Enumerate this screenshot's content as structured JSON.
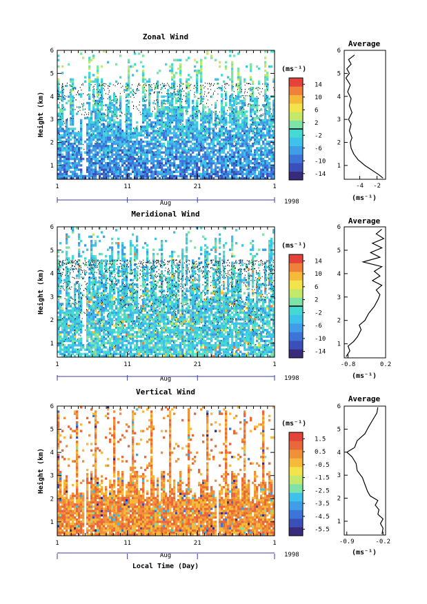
{
  "figure": {
    "xlabel": "Local Time (Day)",
    "year": "1998",
    "month": "Aug",
    "ylabel": "Height (km)"
  },
  "chart_data": [
    {
      "type": "heatmap",
      "title": "Zonal Wind",
      "xlabel": "Aug",
      "ylabel": "Height (km)",
      "x_ticks": [
        "1",
        "11",
        "21",
        "1"
      ],
      "y_ticks": [
        "1",
        "2",
        "3",
        "4",
        "5",
        "6"
      ],
      "ylim": [
        0.4,
        6
      ],
      "colorbar": {
        "unit": "(ms⁻¹)",
        "labels": [
          "14",
          "10",
          "6",
          "2",
          "-2",
          "-6",
          "-10",
          "-14"
        ],
        "range": [
          -16,
          16
        ],
        "zero_line": 0
      },
      "profile": {
        "title": "Average",
        "x_ticks": [
          "-4",
          "-2"
        ],
        "xlim": [
          -5.8,
          -1.0
        ],
        "unit": "(ms⁻¹)",
        "y_ticks": [
          "1",
          "2",
          "3",
          "4",
          "5",
          "6"
        ],
        "points": [
          {
            "v": -1.3,
            "h": 0.45
          },
          {
            "v": -1.8,
            "h": 0.6
          },
          {
            "v": -2.6,
            "h": 0.8
          },
          {
            "v": -3.4,
            "h": 1.0
          },
          {
            "v": -4.2,
            "h": 1.25
          },
          {
            "v": -4.7,
            "h": 1.5
          },
          {
            "v": -5.0,
            "h": 1.75
          },
          {
            "v": -5.1,
            "h": 2.0
          },
          {
            "v": -4.9,
            "h": 2.2
          },
          {
            "v": -5.2,
            "h": 2.5
          },
          {
            "v": -5.0,
            "h": 2.8
          },
          {
            "v": -5.3,
            "h": 3.0
          },
          {
            "v": -4.9,
            "h": 3.3
          },
          {
            "v": -5.2,
            "h": 3.6
          },
          {
            "v": -5.0,
            "h": 3.9
          },
          {
            "v": -5.4,
            "h": 4.2
          },
          {
            "v": -5.1,
            "h": 4.5
          },
          {
            "v": -5.6,
            "h": 4.8
          },
          {
            "v": -5.2,
            "h": 5.0
          },
          {
            "v": -5.5,
            "h": 5.2
          },
          {
            "v": -5.0,
            "h": 5.4
          },
          {
            "v": -5.3,
            "h": 5.6
          },
          {
            "v": -4.6,
            "h": 5.8
          }
        ]
      }
    },
    {
      "type": "heatmap",
      "title": "Meridional Wind",
      "xlabel": "Aug",
      "ylabel": "Height (km)",
      "x_ticks": [
        "1",
        "11",
        "21",
        "1"
      ],
      "y_ticks": [
        "1",
        "2",
        "3",
        "4",
        "5",
        "6"
      ],
      "ylim": [
        0.4,
        6
      ],
      "colorbar": {
        "unit": "(ms⁻¹)",
        "labels": [
          "14",
          "10",
          "6",
          "2",
          "-2",
          "-6",
          "-10",
          "-14"
        ],
        "range": [
          -16,
          16
        ],
        "zero_line": 0
      },
      "profile": {
        "title": "Average",
        "x_ticks": [
          "-0.8",
          "0.2"
        ],
        "xlim": [
          -0.9,
          0.2
        ],
        "unit": "(ms⁻¹)",
        "y_ticks": [
          "1",
          "2",
          "3",
          "4",
          "5",
          "6"
        ],
        "points": [
          {
            "v": -0.85,
            "h": 0.45
          },
          {
            "v": -0.75,
            "h": 0.7
          },
          {
            "v": -0.8,
            "h": 0.9
          },
          {
            "v": -0.65,
            "h": 1.1
          },
          {
            "v": -0.55,
            "h": 1.3
          },
          {
            "v": -0.45,
            "h": 1.6
          },
          {
            "v": -0.5,
            "h": 1.8
          },
          {
            "v": -0.35,
            "h": 2.0
          },
          {
            "v": -0.25,
            "h": 2.3
          },
          {
            "v": -0.1,
            "h": 2.6
          },
          {
            "v": 0.0,
            "h": 2.9
          },
          {
            "v": 0.05,
            "h": 3.1
          },
          {
            "v": -0.05,
            "h": 3.3
          },
          {
            "v": 0.1,
            "h": 3.5
          },
          {
            "v": -0.15,
            "h": 3.7
          },
          {
            "v": 0.05,
            "h": 3.9
          },
          {
            "v": -0.1,
            "h": 4.1
          },
          {
            "v": 0.1,
            "h": 4.3
          },
          {
            "v": -0.4,
            "h": 4.5
          },
          {
            "v": 0.05,
            "h": 4.7
          },
          {
            "v": -0.2,
            "h": 4.9
          },
          {
            "v": 0.1,
            "h": 5.1
          },
          {
            "v": -0.15,
            "h": 5.3
          },
          {
            "v": 0.15,
            "h": 5.5
          },
          {
            "v": -0.05,
            "h": 5.7
          },
          {
            "v": 0.1,
            "h": 5.9
          }
        ]
      }
    },
    {
      "type": "heatmap",
      "title": "Vertical Wind",
      "xlabel": "Aug",
      "ylabel": "Height (km)",
      "x_ticks": [
        "1",
        "11",
        "21",
        "1"
      ],
      "y_ticks": [
        "1",
        "2",
        "3",
        "4",
        "5",
        "6"
      ],
      "ylim": [
        0.4,
        6
      ],
      "colorbar": {
        "unit": "(ms⁻¹)",
        "labels": [
          "1.5",
          "0.5",
          "-0.5",
          "-1.5",
          "-2.5",
          "-3.5",
          "-4.5",
          "-5.5"
        ],
        "range": [
          -6.0,
          2.0
        ]
      },
      "profile": {
        "title": "Average",
        "x_ticks": [
          "-0.9",
          "-0.2"
        ],
        "xlim": [
          -0.95,
          -0.15
        ],
        "unit": "(ms⁻¹)",
        "y_ticks": [
          "1",
          "2",
          "3",
          "4",
          "5",
          "6"
        ],
        "points": [
          {
            "v": -0.22,
            "h": 0.45
          },
          {
            "v": -0.2,
            "h": 0.7
          },
          {
            "v": -0.25,
            "h": 0.9
          },
          {
            "v": -0.2,
            "h": 1.1
          },
          {
            "v": -0.3,
            "h": 1.3
          },
          {
            "v": -0.28,
            "h": 1.5
          },
          {
            "v": -0.35,
            "h": 1.7
          },
          {
            "v": -0.3,
            "h": 1.9
          },
          {
            "v": -0.45,
            "h": 2.1
          },
          {
            "v": -0.5,
            "h": 2.3
          },
          {
            "v": -0.55,
            "h": 2.6
          },
          {
            "v": -0.6,
            "h": 2.9
          },
          {
            "v": -0.7,
            "h": 3.2
          },
          {
            "v": -0.72,
            "h": 3.5
          },
          {
            "v": -0.8,
            "h": 3.8
          },
          {
            "v": -0.9,
            "h": 4.0
          },
          {
            "v": -0.75,
            "h": 4.2
          },
          {
            "v": -0.7,
            "h": 4.5
          },
          {
            "v": -0.55,
            "h": 4.8
          },
          {
            "v": -0.48,
            "h": 5.1
          },
          {
            "v": -0.4,
            "h": 5.4
          },
          {
            "v": -0.32,
            "h": 5.7
          },
          {
            "v": -0.3,
            "h": 5.95
          }
        ]
      }
    }
  ]
}
